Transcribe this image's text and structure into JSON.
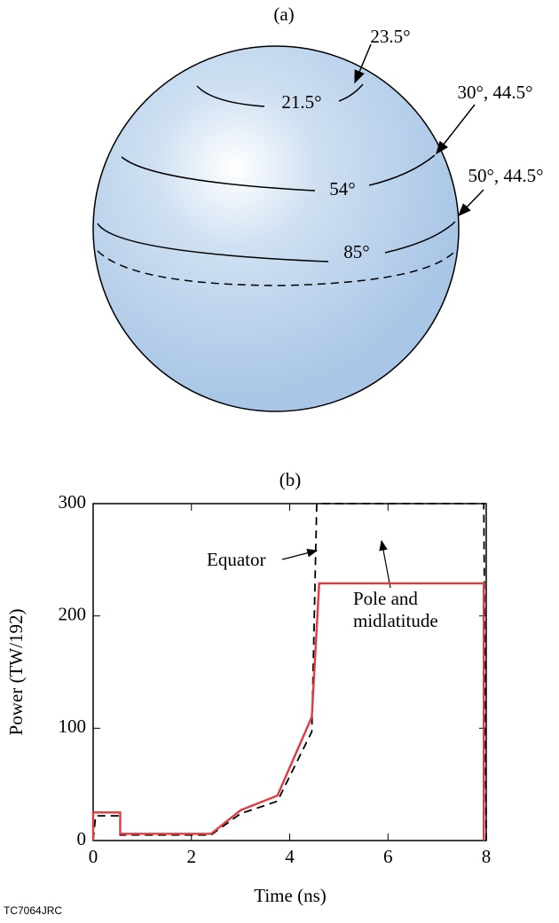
{
  "diagram": {
    "title": "(a)",
    "labels": [
      "23.5°",
      "21.5°",
      "30°, 44.5°",
      "54°",
      "50°, 44.5°",
      "85°"
    ]
  },
  "chart_data": {
    "type": "line",
    "title": "(b)",
    "x_label": "Time (ns)",
    "y_label": "Power (TW/192)",
    "xlim": [
      0,
      8
    ],
    "ylim": [
      0,
      300
    ],
    "xticks": [
      0,
      2,
      4,
      6,
      8
    ],
    "yticks": [
      0,
      100,
      200,
      300
    ],
    "series": [
      {
        "name": "Equator",
        "color": "#000000",
        "dash": true,
        "x": [
          0,
          0.05,
          0.55,
          0.55,
          2.4,
          3.0,
          3.75,
          4.45,
          4.55,
          7.95,
          8.0
        ],
        "values": [
          0,
          22,
          22,
          5,
          5,
          24,
          35,
          97,
          300,
          300,
          0
        ]
      },
      {
        "name": "Pole and midlatitude",
        "color": "#e0393e",
        "dash": false,
        "x": [
          0,
          0,
          0.55,
          0.55,
          2.4,
          3.0,
          3.75,
          4.45,
          4.6,
          7.95,
          7.95
        ],
        "values": [
          0,
          25,
          25,
          6,
          6,
          27,
          40,
          110,
          229,
          229,
          0
        ]
      }
    ]
  },
  "footer": "TC7064JRC"
}
